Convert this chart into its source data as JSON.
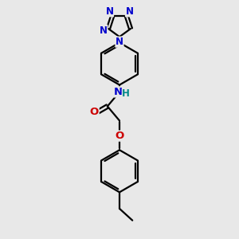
{
  "bg_color": "#e8e8e8",
  "bond_color": "#000000",
  "N_color": "#0000cc",
  "O_color": "#cc0000",
  "H_color": "#008888",
  "line_width": 1.6,
  "font_size_atom": 8.5,
  "fig_w": 3.0,
  "fig_h": 3.0,
  "dpi": 100,
  "xlim": [
    0,
    10
  ],
  "ylim": [
    0,
    10
  ]
}
